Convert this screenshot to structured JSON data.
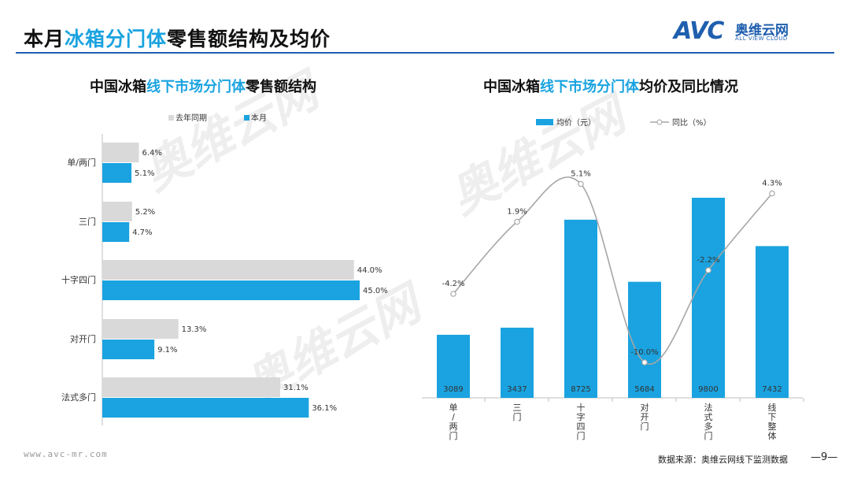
{
  "page": {
    "title_prefix": "本月",
    "title_accent": "冰箱分门体",
    "title_suffix": "零售额结构及均价",
    "logo_mark": "AVC",
    "logo_cn": "奥维云网",
    "logo_en": "ALL VIEW CLOUD",
    "footer_url": "www.avc-mr.com",
    "source": "数据来源：奥维云网线下监测数据",
    "page_number": "—9—",
    "watermark_cn": "奥维云网",
    "watermark_en": "ALL VIEW CLOUD"
  },
  "left_title": {
    "prefix": "中国冰箱",
    "accent": "线下市场分门体",
    "suffix": "零售额结构"
  },
  "right_title": {
    "prefix": "中国冰箱",
    "accent": "线下市场分门体",
    "suffix": "均价及同比情况"
  },
  "colors": {
    "accent": "#1aa3e0",
    "gray_bar": "#d9d9d9",
    "line": "#a6a6a6",
    "brand": "#1f5fae"
  },
  "chart_data": [
    {
      "type": "bar",
      "orientation": "horizontal",
      "categories": [
        "单/两门",
        "三门",
        "十字四门",
        "对开门",
        "法式多门"
      ],
      "series": [
        {
          "name": "去年同期",
          "values": [
            6.4,
            5.2,
            44.0,
            13.3,
            31.1
          ],
          "labels": [
            "6.4%",
            "5.2%",
            "44.0%",
            "13.3%",
            "31.1%"
          ]
        },
        {
          "name": "本月",
          "values": [
            5.1,
            4.7,
            45.0,
            9.1,
            36.1
          ],
          "labels": [
            "5.1%",
            "4.7%",
            "45.0%",
            "9.1%",
            "36.1%"
          ]
        }
      ],
      "xlim": [
        0,
        50
      ],
      "legend_position": "top"
    },
    {
      "type": "bar",
      "categories": [
        "单/两门",
        "三门",
        "十字四门",
        "对开门",
        "法式多门",
        "线下整体"
      ],
      "series": [
        {
          "name": "均价（元）",
          "type": "bar",
          "values": [
            3089,
            3437,
            8725,
            5684,
            9800,
            7432
          ],
          "labels": [
            "3089",
            "3437",
            "8725",
            "5684",
            "9800",
            "7432"
          ]
        },
        {
          "name": "同比（%）",
          "type": "line",
          "values": [
            -4.2,
            1.9,
            5.1,
            -10.0,
            -2.2,
            4.3
          ],
          "labels": [
            "-4.2%",
            "1.9%",
            "5.1%",
            "-10.0%",
            "-2.2%",
            "4.3%"
          ]
        }
      ],
      "ylim_bar": [
        0,
        12000
      ],
      "ylim_line": [
        -12,
        6
      ],
      "legend_position": "top"
    }
  ]
}
